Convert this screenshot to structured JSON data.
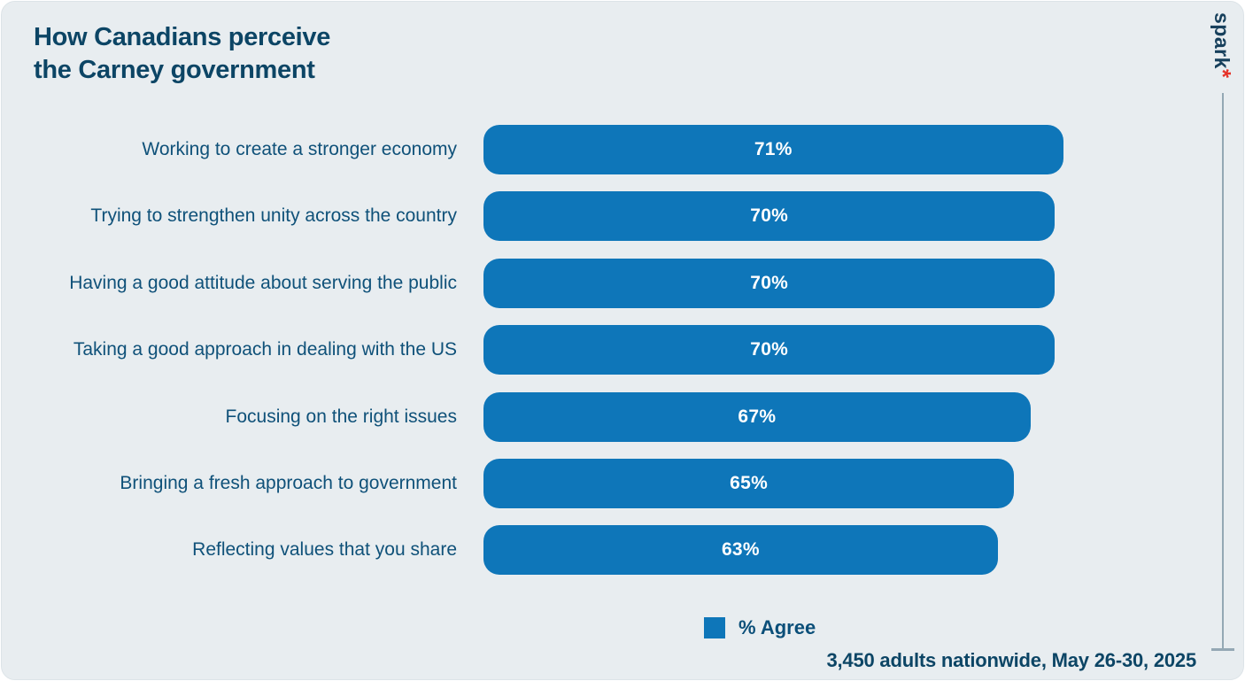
{
  "header": {
    "title_line1": "How Canadians perceive",
    "title_line2": "the Carney government"
  },
  "brand": {
    "name": "spark",
    "mark": "*"
  },
  "legend": {
    "label": "% Agree"
  },
  "footnote": {
    "text": "3,450 adults nationwide, May 26-30, 2025"
  },
  "colors": {
    "bar": "#0e76b9",
    "navy_text": "#0c4565",
    "label_text": "#0f5179",
    "card_background": "#e8edf0",
    "accent_red": "#e53228",
    "divider_line": "#94a8b4"
  },
  "chart_data": {
    "type": "bar",
    "orientation": "horizontal",
    "title": "How Canadians perceive the Carney government",
    "series_name": "% Agree",
    "categories": [
      "Working to create a stronger economy",
      "Trying to strengthen unity across the country",
      "Having a good attitude about serving the public",
      "Taking a good approach in dealing with the US",
      "Focusing on the right issues",
      "Bringing a fresh approach to government",
      "Reflecting values that you share"
    ],
    "values": [
      71,
      70,
      70,
      70,
      67,
      65,
      63
    ],
    "labels": [
      "71%",
      "70%",
      "70%",
      "70%",
      "67%",
      "65%",
      "63%"
    ],
    "value_unit": "%",
    "xlim": [
      0,
      100
    ],
    "grid": false,
    "legend_position": "bottom",
    "annotation": "3,450 adults nationwide, May 26-30, 2025"
  }
}
